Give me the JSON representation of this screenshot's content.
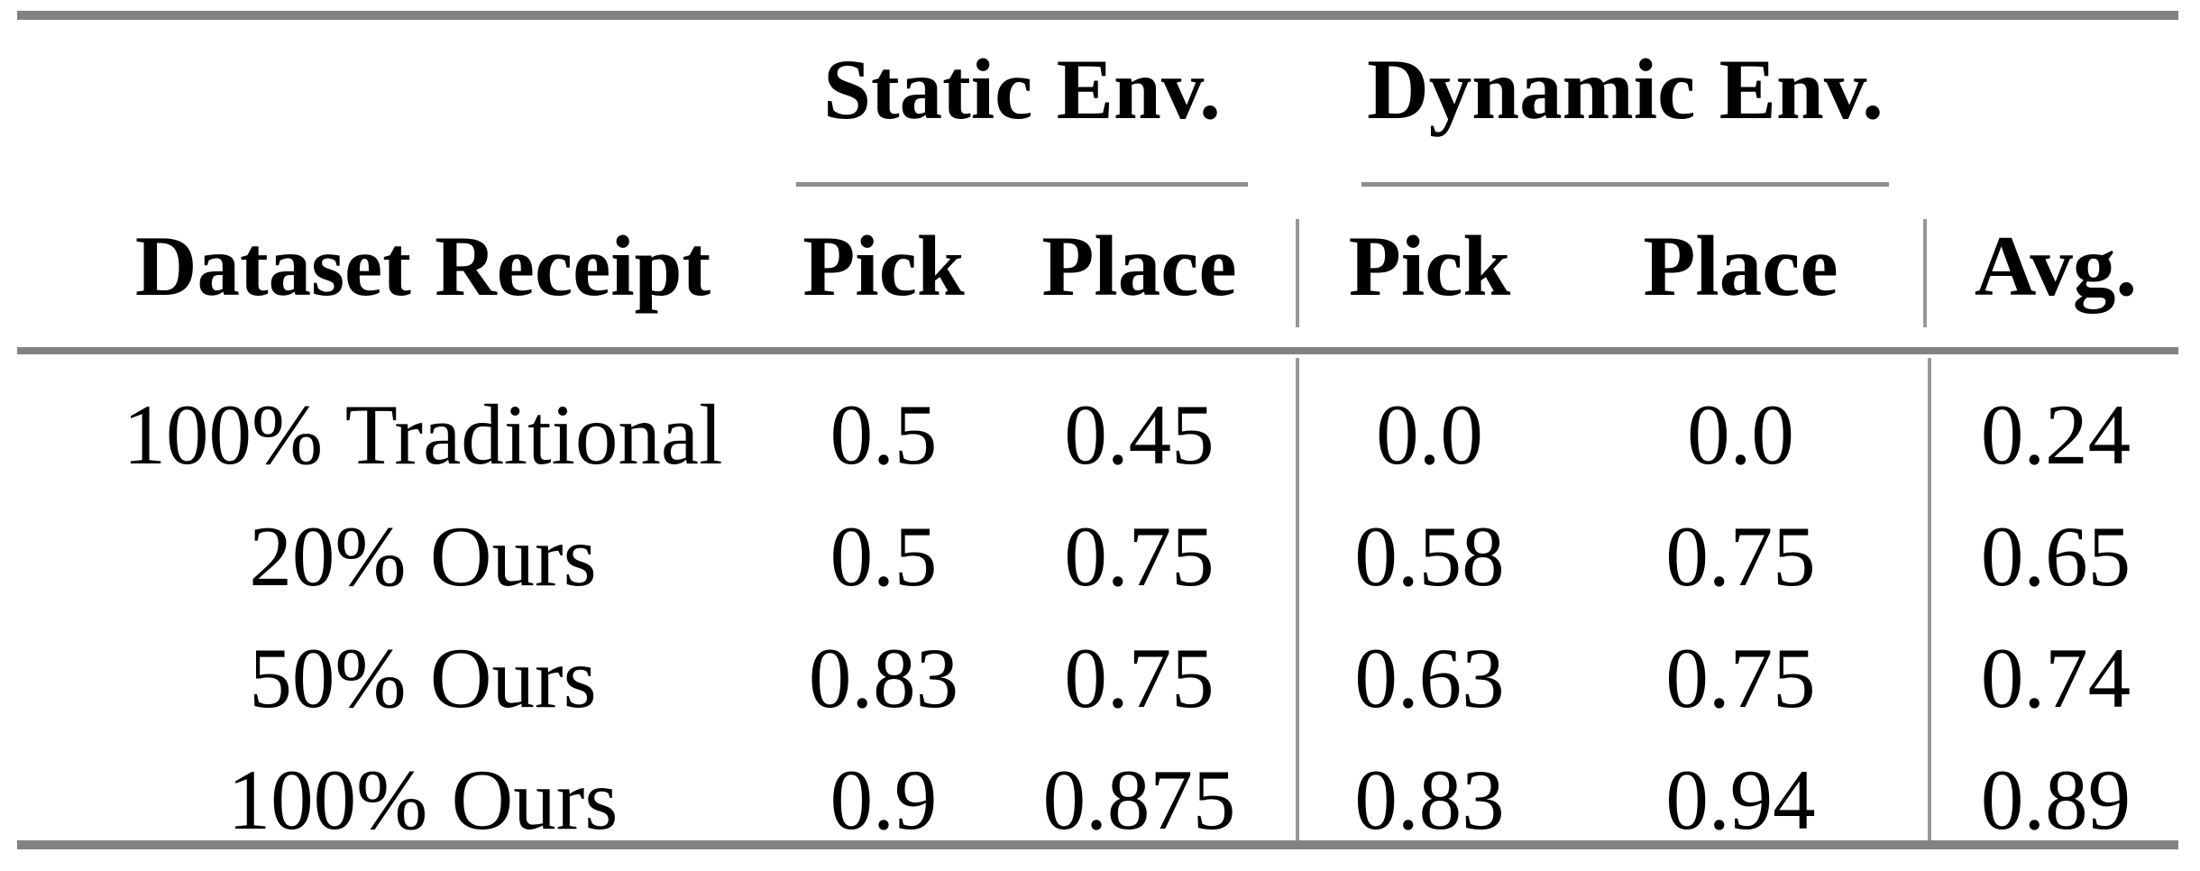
{
  "figure": {
    "type": "results-table",
    "rule_color": "#828282",
    "thin_rule_color": "#979797",
    "text_color": "#000000",
    "background_color": "#ffffff"
  },
  "table": {
    "group_headers": [
      {
        "label": "Static Env."
      },
      {
        "label": "Dynamic Env."
      }
    ],
    "columns": [
      "Dataset Receipt",
      "Pick",
      "Place",
      "Pick",
      "Place",
      "Avg."
    ],
    "rows": [
      {
        "cells": [
          "100% Traditional",
          "0.5",
          "0.45",
          "0.0",
          "0.0",
          "0.24"
        ]
      },
      {
        "cells": [
          "20% Ours",
          "0.5",
          "0.75",
          "0.58",
          "0.75",
          "0.65"
        ]
      },
      {
        "cells": [
          "50% Ours",
          "0.83",
          "0.75",
          "0.63",
          "0.75",
          "0.74"
        ]
      },
      {
        "cells": [
          "100% Ours",
          "0.9",
          "0.875",
          "0.83",
          "0.94",
          "0.89"
        ]
      }
    ]
  },
  "chart_data": {
    "type": "table",
    "title": "",
    "column_groups": [
      "",
      "Static Env.",
      "Static Env.",
      "Dynamic Env.",
      "Dynamic Env.",
      ""
    ],
    "columns": [
      "Dataset Receipt",
      "Pick",
      "Place",
      "Pick",
      "Place",
      "Avg."
    ],
    "rows": [
      [
        "100% Traditional",
        0.5,
        0.45,
        0.0,
        0.0,
        0.24
      ],
      [
        "20% Ours",
        0.5,
        0.75,
        0.58,
        0.75,
        0.65
      ],
      [
        "50% Ours",
        0.83,
        0.75,
        0.63,
        0.75,
        0.74
      ],
      [
        "100% Ours",
        0.9,
        0.875,
        0.83,
        0.94,
        0.89
      ]
    ]
  }
}
